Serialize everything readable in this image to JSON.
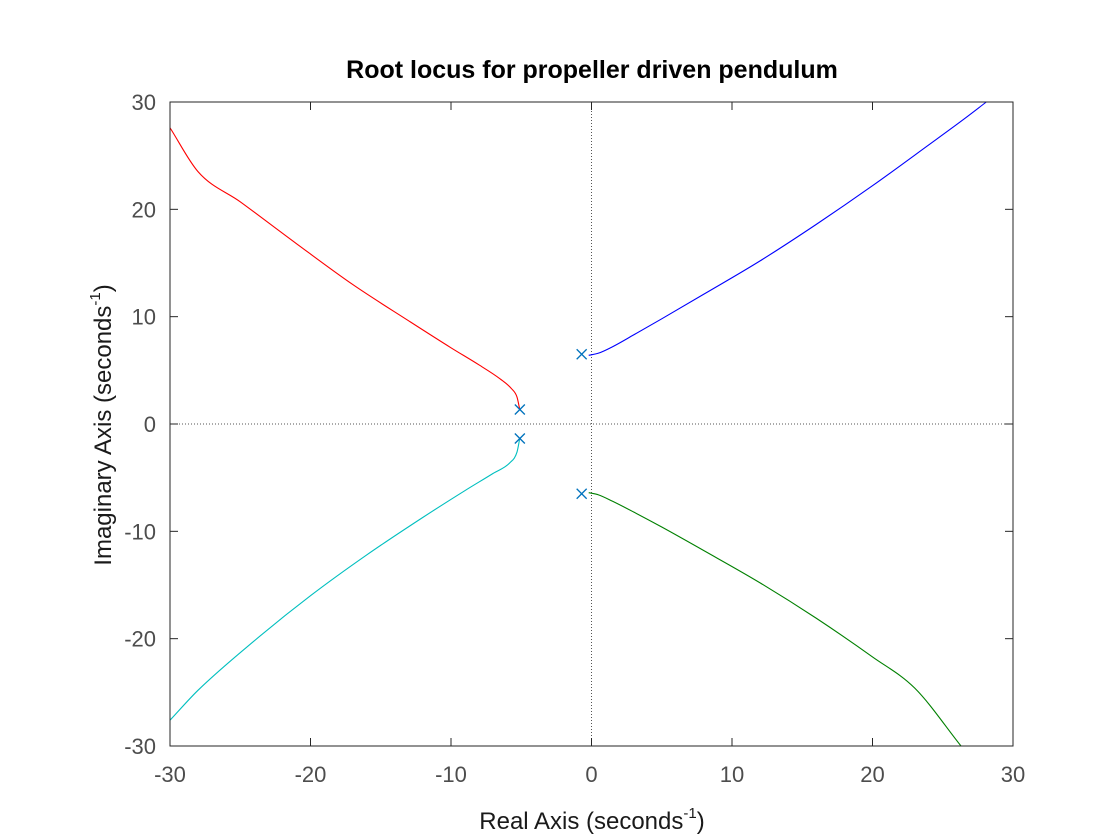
{
  "chart_data": {
    "type": "line",
    "title": "Root locus for propeller driven pendulum",
    "xlabel": {
      "main": "Real Axis (seconds",
      "sup": "-1",
      "end": ")"
    },
    "ylabel": {
      "main": "Imaginary Axis (seconds",
      "sup": "-1",
      "end": ")"
    },
    "xlim": [
      -30,
      30
    ],
    "ylim": [
      -30,
      30
    ],
    "xticks": [
      -30,
      -20,
      -10,
      0,
      10,
      20,
      30
    ],
    "yticks": [
      -30,
      -20,
      -10,
      0,
      10,
      20,
      30
    ],
    "grid": false,
    "reference_lines": [
      "x=0",
      "y=0"
    ],
    "series": [
      {
        "color": "#0000ff",
        "points": [
          [
            -0.2,
            6.4
          ],
          [
            0.5,
            6.6
          ],
          [
            1.5,
            7.2
          ],
          [
            3,
            8.3
          ],
          [
            5,
            9.8
          ],
          [
            8,
            12.1
          ],
          [
            12,
            15.2
          ],
          [
            16,
            18.6
          ],
          [
            20,
            22.2
          ],
          [
            24,
            26.0
          ],
          [
            26.5,
            28.4
          ],
          [
            28.1,
            30.0
          ]
        ]
      },
      {
        "color": "#008000",
        "points": [
          [
            -0.2,
            -6.4
          ],
          [
            0.5,
            -6.6
          ],
          [
            1.5,
            -7.2
          ],
          [
            3,
            -8.2
          ],
          [
            5,
            -9.6
          ],
          [
            8,
            -11.8
          ],
          [
            12,
            -14.8
          ],
          [
            16,
            -18.1
          ],
          [
            20,
            -21.7
          ],
          [
            23,
            -24.6
          ],
          [
            26.3,
            -30.0
          ]
        ]
      },
      {
        "color": "#ff0000",
        "points": [
          [
            -5.1,
            1.3
          ],
          [
            -5.3,
            2.5
          ],
          [
            -5.7,
            3.3
          ],
          [
            -6.5,
            4.2
          ],
          [
            -8,
            5.5
          ],
          [
            -10,
            7.1
          ],
          [
            -13,
            9.6
          ],
          [
            -17,
            13.0
          ],
          [
            -21,
            16.8
          ],
          [
            -25,
            20.7
          ],
          [
            -28,
            23.5
          ],
          [
            -30,
            27.6
          ]
        ]
      },
      {
        "color": "#00bfbf",
        "points": [
          [
            -5.1,
            -1.3
          ],
          [
            -5.3,
            -2.6
          ],
          [
            -5.8,
            -3.6
          ],
          [
            -7,
            -4.6
          ],
          [
            -9,
            -6.2
          ],
          [
            -12,
            -8.7
          ],
          [
            -16,
            -12.2
          ],
          [
            -20,
            -16.0
          ],
          [
            -24,
            -20.2
          ],
          [
            -28,
            -24.8
          ],
          [
            -30,
            -27.6
          ]
        ]
      }
    ],
    "poles": [
      [
        -0.7,
        6.5
      ],
      [
        -0.7,
        -6.5
      ],
      [
        -5.1,
        1.35
      ],
      [
        -5.1,
        -1.35
      ]
    ],
    "pole_color": "#0072bd"
  }
}
